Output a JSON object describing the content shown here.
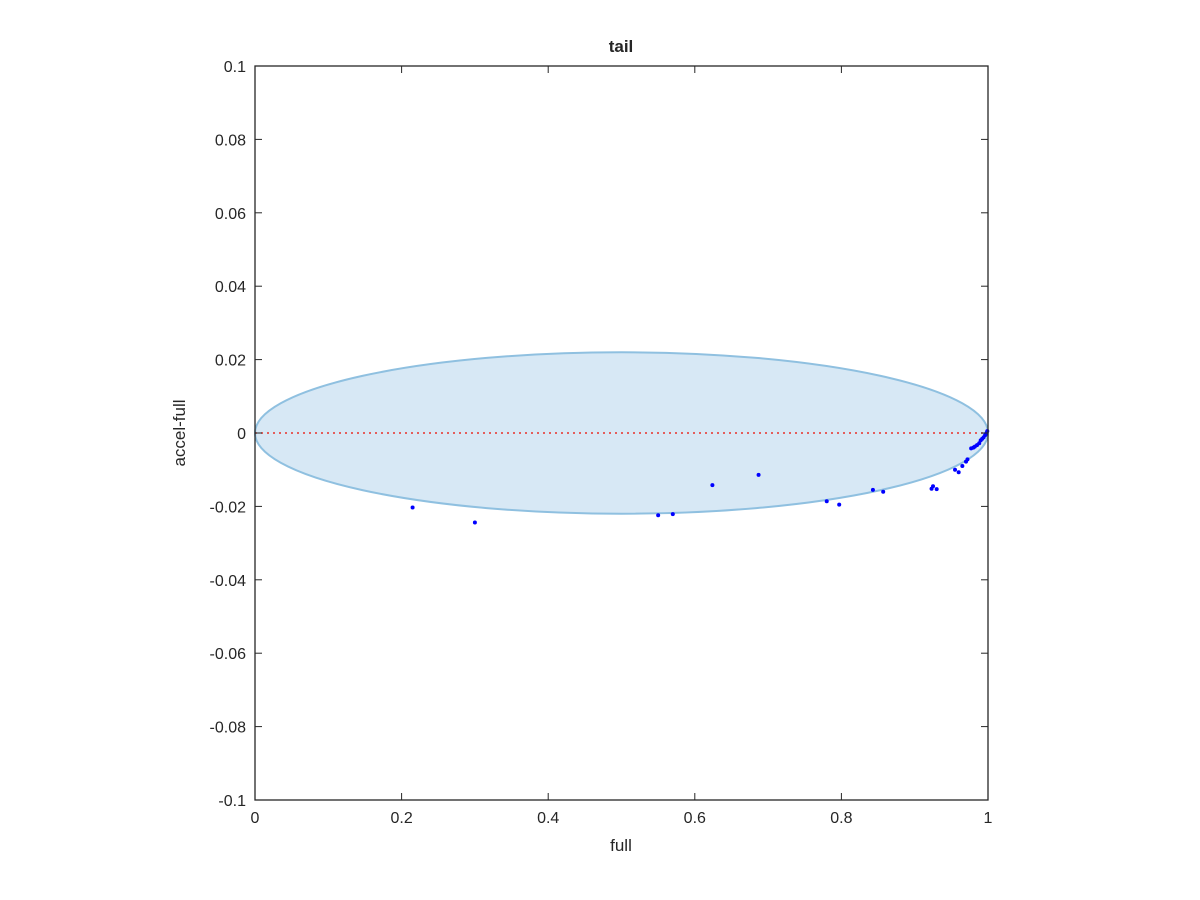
{
  "chart_data": {
    "type": "scatter",
    "title": "tail",
    "xlabel": "full",
    "ylabel": "accel-full",
    "xlim": [
      0,
      1
    ],
    "ylim": [
      -0.1,
      0.1
    ],
    "x_ticks": [
      "0",
      "0.2",
      "0.4",
      "0.6",
      "0.8",
      "1"
    ],
    "y_ticks": [
      "0.1",
      "0.08",
      "0.06",
      "0.04",
      "0.02",
      "0",
      "-0.02",
      "-0.04",
      "-0.06",
      "-0.08",
      "-0.1"
    ],
    "grid": false,
    "ellipse": {
      "center_x": 0.5,
      "center_y": 0,
      "semi_axis_x": 0.5,
      "semi_axis_y": 0.022,
      "fill_color": "#d7e8f5",
      "edge_color": "#8fc0e0"
    },
    "reference_line": {
      "y": 0,
      "style": "dotted",
      "color": "#e8302a"
    },
    "marker_color": "#0000ff",
    "points": [
      [
        0.215,
        -0.0203
      ],
      [
        0.3,
        -0.0244
      ],
      [
        0.55,
        -0.0224
      ],
      [
        0.57,
        -0.0221
      ],
      [
        0.624,
        -0.0142
      ],
      [
        0.687,
        -0.0114
      ],
      [
        0.78,
        -0.0186
      ],
      [
        0.797,
        -0.0195
      ],
      [
        0.843,
        -0.0155
      ],
      [
        0.857,
        -0.016
      ],
      [
        0.923,
        -0.0152
      ],
      [
        0.925,
        -0.0145
      ],
      [
        0.93,
        -0.0153
      ],
      [
        0.955,
        -0.01
      ],
      [
        0.96,
        -0.0107
      ],
      [
        0.965,
        -0.009
      ],
      [
        0.97,
        -0.0078
      ],
      [
        0.972,
        -0.0072
      ],
      [
        0.977,
        -0.0042
      ],
      [
        0.98,
        -0.004
      ],
      [
        0.982,
        -0.0037
      ],
      [
        0.985,
        -0.0033
      ],
      [
        0.988,
        -0.0028
      ],
      [
        0.99,
        -0.002
      ],
      [
        0.992,
        -0.0016
      ],
      [
        0.994,
        -0.0012
      ],
      [
        0.996,
        -0.0006
      ],
      [
        0.997,
        -0.0003
      ],
      [
        0.998,
        0.0
      ],
      [
        0.999,
        0.0005
      ]
    ]
  }
}
